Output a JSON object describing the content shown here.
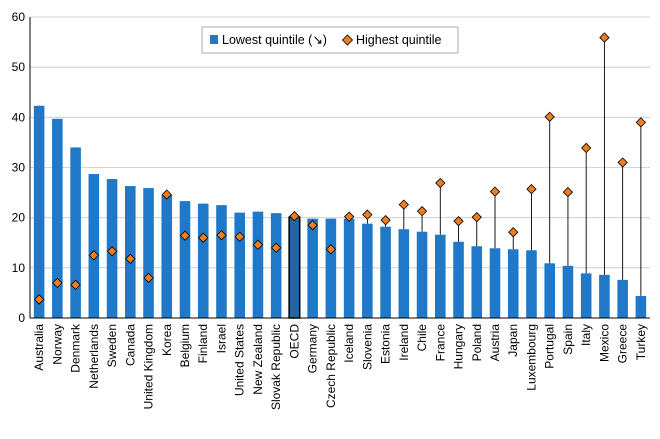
{
  "chart_data": {
    "type": "bar",
    "categories": [
      "Australia",
      "Norway",
      "Denmark",
      "Netherlands",
      "Sweden",
      "Canada",
      "United Kingdom",
      "Korea",
      "Belgium",
      "Finland",
      "Israel",
      "United States",
      "New Zealand",
      "Slovak Republic",
      "OECD",
      "Germany",
      "Czech Republic",
      "Iceland",
      "Slovenia",
      "Estonia",
      "Ireland",
      "Chile",
      "France",
      "Hungary",
      "Poland",
      "Austria",
      "Japan",
      "Luxembourg",
      "Portugal",
      "Spain",
      "Italy",
      "Mexico",
      "Greece",
      "Turkey"
    ],
    "highlight_category": "OECD",
    "series": [
      {
        "name": "Lowest quintile (↘)",
        "type": "bar",
        "color": "#1f78c8",
        "values": [
          42.3,
          39.7,
          34.0,
          28.7,
          27.7,
          26.3,
          25.9,
          24.5,
          23.3,
          22.8,
          22.5,
          21.0,
          21.2,
          20.9,
          20.1,
          19.8,
          19.8,
          19.8,
          18.8,
          18.2,
          17.7,
          17.2,
          16.6,
          15.2,
          14.3,
          13.9,
          13.7,
          13.5,
          10.9,
          10.4,
          8.9,
          8.6,
          7.6,
          4.4
        ]
      },
      {
        "name": "Highest quintile",
        "type": "marker",
        "color": "#ee7d1f",
        "values": [
          3.7,
          7.0,
          6.6,
          12.5,
          13.3,
          11.8,
          8.0,
          24.6,
          16.4,
          16.0,
          16.5,
          16.2,
          14.6,
          14.0,
          20.3,
          18.5,
          13.7,
          20.2,
          20.6,
          19.5,
          22.6,
          21.3,
          26.9,
          19.3,
          20.1,
          25.2,
          17.1,
          25.7,
          40.1,
          25.1,
          33.9,
          55.9,
          31.0,
          39.0
        ]
      }
    ],
    "ylim": [
      0,
      60
    ],
    "yticks": [
      0,
      10,
      20,
      30,
      40,
      50,
      60
    ],
    "grid": true,
    "legend_position": "top-center",
    "title": "",
    "xlabel": "",
    "ylabel": ""
  }
}
